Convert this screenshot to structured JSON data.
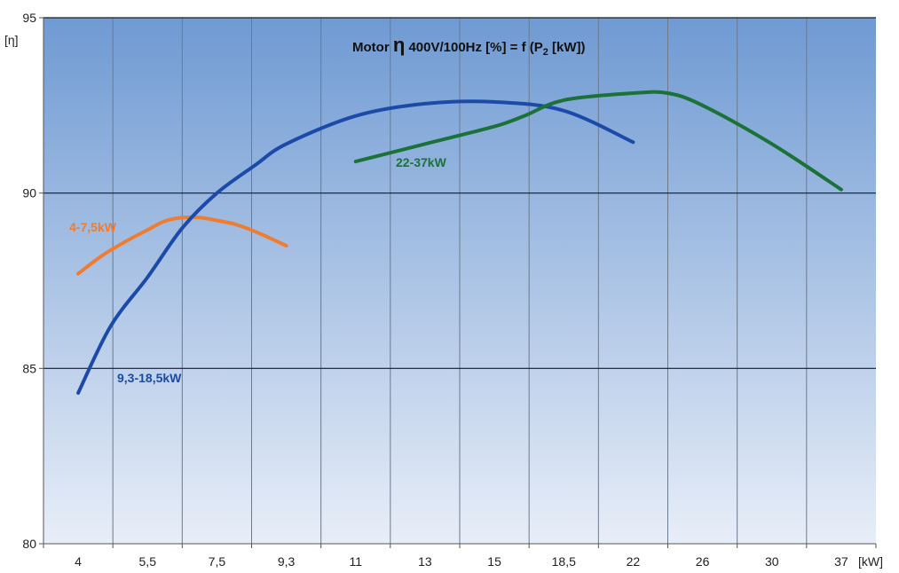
{
  "chart_data": {
    "type": "line",
    "title": {
      "prefix": "Motor ",
      "symbol": "η",
      "middle": " 400V/100Hz  [%] = f (P",
      "subscript": "2",
      "suffix": " [kW])"
    },
    "ylabel": "[η]",
    "xlabel_unit": "[kW]",
    "ylim": [
      80,
      95
    ],
    "y_ticks": [
      "80",
      "85",
      "90",
      "95"
    ],
    "y_major_lines": [
      85,
      90,
      95
    ],
    "x_ticks": [
      "4",
      "5,5",
      "7,5",
      "9,3",
      "11",
      "13",
      "15",
      "18,5",
      "22",
      "26",
      "30",
      "37"
    ],
    "x_scale": "categorical",
    "grid": true,
    "colors": {
      "bg_top": "#6f9ad3",
      "bg_bottom": "#e8eef8",
      "grid_minor": "#6b7a8c",
      "grid_major": "#1a1a1a",
      "axis": "#555555"
    },
    "series": [
      {
        "name": "4-7,5kW",
        "color": "#ee7d31",
        "x": [
          4,
          4.5,
          5,
          5.5,
          6,
          6.5,
          7,
          7.5,
          8,
          8.5,
          9.3
        ],
        "y": [
          87.7,
          88.2,
          88.6,
          88.95,
          89.2,
          89.3,
          89.3,
          89.22,
          89.1,
          88.9,
          88.5
        ]
      },
      {
        "name": "9,3-18,5kW",
        "color": "#1c4aa8",
        "x": [
          4,
          4.7,
          5.5,
          6.5,
          7.5,
          8.5,
          9.3,
          11,
          13,
          15,
          18.5,
          22
        ],
        "y": [
          84.3,
          86.2,
          87.6,
          89.0,
          90.0,
          90.8,
          91.4,
          92.2,
          92.55,
          92.6,
          92.35,
          91.45
        ]
      },
      {
        "name": "22-37kW",
        "color": "#1b7137",
        "x": [
          11,
          13,
          15,
          16.5,
          18.5,
          22,
          24,
          26,
          30,
          37
        ],
        "y": [
          90.9,
          91.4,
          91.9,
          92.2,
          92.65,
          92.85,
          92.85,
          92.5,
          91.4,
          90.1
        ]
      }
    ]
  }
}
